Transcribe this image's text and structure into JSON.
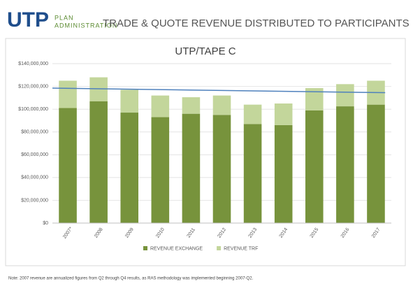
{
  "logo": {
    "mark": "UTP",
    "line1": "PLAN",
    "line2": "ADMINISTRATION"
  },
  "slide_title": "TRADE & QUOTE REVENUE DISTRIBUTED TO PARTICIPANTS",
  "note": "Note: 2007 revenue are annualized figures from Q2 through Q4 results, as RAS methodology was implemented beginning 2007-Q2.",
  "chart_data": {
    "type": "stacked-bar",
    "title": "UTP/TAPE C",
    "categories": [
      "2007*",
      "2008",
      "2009",
      "2010",
      "2011",
      "2012",
      "2013",
      "2014",
      "2015",
      "2016",
      "2017"
    ],
    "series": [
      {
        "name": "REVENUE EXCHANGE",
        "color": "#77933c",
        "values": [
          101000000,
          107000000,
          97000000,
          93000000,
          96000000,
          95000000,
          87000000,
          86000000,
          99000000,
          102500000,
          104000000
        ]
      },
      {
        "name": "REVENUE TRF",
        "color": "#c3d69b",
        "values": [
          24000000,
          21000000,
          20000000,
          19000000,
          14500000,
          17000000,
          17000000,
          19000000,
          19500000,
          19500000,
          21000000
        ]
      }
    ],
    "trendline": {
      "color": "#4f81bd",
      "start": 118500000,
      "end": 114500000
    },
    "ylim": [
      0,
      140000000
    ],
    "yticks": [
      {
        "value": 0,
        "label": "$0"
      },
      {
        "value": 20000000,
        "label": "$20,000,000"
      },
      {
        "value": 40000000,
        "label": "$40,000,000"
      },
      {
        "value": 60000000,
        "label": "$60,000,000"
      },
      {
        "value": 80000000,
        "label": "$80,000,000"
      },
      {
        "value": 100000000,
        "label": "$100,000,000"
      },
      {
        "value": 120000000,
        "label": "$120,000,000"
      },
      {
        "value": 140000000,
        "label": "$140,000,000"
      }
    ],
    "grid": true,
    "legend": "bottom"
  }
}
